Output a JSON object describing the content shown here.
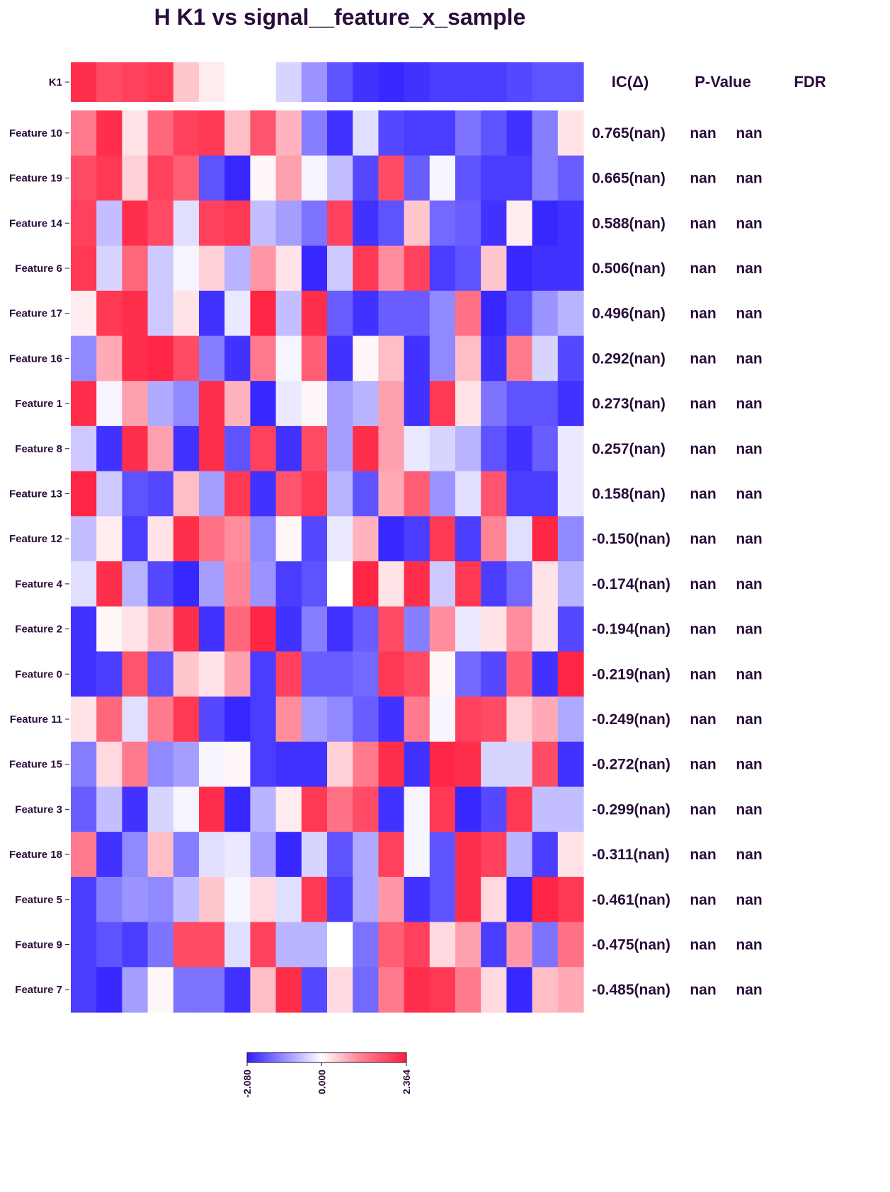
{
  "chart_data": {
    "type": "heatmap",
    "title": "H K1 vs signal__feature_x_sample",
    "target": {
      "label": "K1",
      "values": [
        2.2,
        1.9,
        2.0,
        2.1,
        0.6,
        0.2,
        0.0,
        0.0,
        -0.4,
        -1.0,
        -1.6,
        -1.9,
        -2.0,
        -1.9,
        -1.8,
        -1.8,
        -1.8,
        -1.7,
        -1.6,
        -1.6
      ]
    },
    "columns_header": [
      "IC(Δ)",
      "P-Value",
      "FDR"
    ],
    "features": [
      {
        "label": "Feature 10",
        "ic": "0.765(nan)",
        "p": "nan",
        "fdr": "nan",
        "values": [
          1.4,
          2.2,
          0.3,
          1.6,
          2.0,
          2.1,
          0.7,
          1.8,
          0.8,
          -1.2,
          -1.9,
          -0.3,
          -1.7,
          -1.8,
          -1.8,
          -1.3,
          -1.6,
          -1.9,
          -1.2,
          0.3
        ]
      },
      {
        "label": "Feature 19",
        "ic": "0.665(nan)",
        "p": "nan",
        "fdr": "nan",
        "values": [
          1.9,
          2.1,
          0.5,
          2.0,
          1.7,
          -1.6,
          -2.0,
          0.1,
          1.0,
          -0.1,
          -0.6,
          -1.7,
          1.9,
          -1.5,
          -0.1,
          -1.6,
          -1.8,
          -1.8,
          -1.2,
          -1.5
        ]
      },
      {
        "label": "Feature 14",
        "ic": "0.588(nan)",
        "p": "nan",
        "fdr": "nan",
        "values": [
          2.0,
          -0.6,
          2.2,
          1.9,
          -0.3,
          2.0,
          2.1,
          -0.6,
          -0.9,
          -1.3,
          2.0,
          -1.9,
          -1.6,
          0.6,
          -1.4,
          -1.5,
          -1.9,
          0.2,
          -2.0,
          -1.9
        ]
      },
      {
        "label": "Feature 6",
        "ic": "0.506(nan)",
        "p": "nan",
        "fdr": "nan",
        "values": [
          2.1,
          -0.4,
          1.6,
          -0.5,
          -0.1,
          0.5,
          -0.7,
          1.1,
          0.3,
          -2.0,
          -0.5,
          2.1,
          1.2,
          2.0,
          -1.8,
          -1.6,
          0.6,
          -2.0,
          -1.9,
          -1.9
        ]
      },
      {
        "label": "Feature 17",
        "ic": "0.496(nan)",
        "p": "nan",
        "fdr": "nan",
        "values": [
          0.2,
          2.1,
          2.2,
          -0.5,
          0.3,
          -1.9,
          -0.2,
          2.3,
          -0.6,
          2.2,
          -1.5,
          -1.9,
          -1.5,
          -1.5,
          -1.1,
          1.5,
          -2.0,
          -1.6,
          -1.0,
          -0.7
        ]
      },
      {
        "label": "Feature 16",
        "ic": "0.292(nan)",
        "p": "nan",
        "fdr": "nan",
        "values": [
          -1.1,
          0.9,
          2.2,
          2.3,
          1.9,
          -1.2,
          -1.9,
          1.4,
          -0.1,
          1.7,
          -1.9,
          0.1,
          0.7,
          -1.9,
          -1.1,
          0.7,
          -1.9,
          1.4,
          -0.4,
          -1.7
        ]
      },
      {
        "label": "Feature 1",
        "ic": "0.273(nan)",
        "p": "nan",
        "fdr": "nan",
        "values": [
          2.2,
          -0.1,
          1.0,
          -0.8,
          -1.1,
          2.2,
          0.8,
          -2.0,
          -0.2,
          0.1,
          -0.9,
          -0.7,
          1.0,
          -1.9,
          2.1,
          0.3,
          -1.3,
          -1.6,
          -1.6,
          -1.9
        ]
      },
      {
        "label": "Feature 8",
        "ic": "0.257(nan)",
        "p": "nan",
        "fdr": "nan",
        "values": [
          -0.5,
          -1.9,
          2.2,
          1.0,
          -1.9,
          2.2,
          -1.6,
          2.0,
          -1.9,
          1.9,
          -0.9,
          2.2,
          1.0,
          -0.2,
          -0.4,
          -0.7,
          -1.6,
          -1.9,
          -1.5,
          -0.2
        ]
      },
      {
        "label": "Feature 13",
        "ic": "0.158(nan)",
        "p": "nan",
        "fdr": "nan",
        "values": [
          2.3,
          -0.5,
          -1.6,
          -1.7,
          0.7,
          -0.9,
          2.1,
          -1.9,
          1.8,
          2.1,
          -0.7,
          -1.6,
          0.9,
          1.7,
          -1.0,
          -0.3,
          1.8,
          -1.8,
          -1.8,
          -0.2
        ]
      },
      {
        "label": "Feature 12",
        "ic": "-0.150(nan)",
        "p": "nan",
        "fdr": "nan",
        "values": [
          -0.6,
          0.2,
          -1.8,
          0.3,
          2.2,
          1.5,
          1.2,
          -1.1,
          0.1,
          -1.7,
          -0.2,
          0.8,
          -2.0,
          -1.8,
          2.1,
          -1.8,
          1.3,
          -0.3,
          2.3,
          -1.1
        ]
      },
      {
        "label": "Feature 4",
        "ic": "-0.174(nan)",
        "p": "nan",
        "fdr": "nan",
        "values": [
          -0.3,
          2.2,
          -0.7,
          -1.7,
          -2.0,
          -0.9,
          1.3,
          -1.0,
          -1.8,
          -1.6,
          0.0,
          2.3,
          0.3,
          2.2,
          -0.5,
          2.1,
          -1.8,
          -1.4,
          0.3,
          -0.7
        ]
      },
      {
        "label": "Feature 2",
        "ic": "-0.194(nan)",
        "p": "nan",
        "fdr": "nan",
        "values": [
          -1.9,
          0.1,
          0.3,
          0.8,
          2.2,
          -1.9,
          1.6,
          2.3,
          -1.9,
          -1.2,
          -1.9,
          -1.5,
          1.9,
          -1.2,
          1.2,
          -0.2,
          0.3,
          1.2,
          0.3,
          -1.7
        ]
      },
      {
        "label": "Feature 0",
        "ic": "-0.219(nan)",
        "p": "nan",
        "fdr": "nan",
        "values": [
          -1.9,
          -1.8,
          1.8,
          -1.6,
          0.6,
          0.3,
          1.0,
          -1.8,
          2.0,
          -1.5,
          -1.5,
          -1.4,
          2.1,
          1.9,
          0.1,
          -1.4,
          -1.7,
          1.7,
          -1.9,
          2.3
        ]
      },
      {
        "label": "Feature 11",
        "ic": "-0.249(nan)",
        "p": "nan",
        "fdr": "nan",
        "values": [
          0.3,
          1.6,
          -0.3,
          1.4,
          2.1,
          -1.7,
          -2.0,
          -1.8,
          1.2,
          -0.9,
          -1.1,
          -1.5,
          -1.9,
          1.4,
          -0.1,
          2.0,
          1.9,
          0.5,
          0.9,
          -0.8
        ]
      },
      {
        "label": "Feature 15",
        "ic": "-0.272(nan)",
        "p": "nan",
        "fdr": "nan",
        "values": [
          -1.2,
          0.4,
          1.4,
          -1.1,
          -0.9,
          -0.1,
          0.1,
          -1.8,
          -1.9,
          -1.9,
          0.5,
          1.4,
          2.2,
          -1.9,
          2.3,
          2.2,
          -0.4,
          -0.4,
          1.9,
          -1.9
        ]
      },
      {
        "label": "Feature 3",
        "ic": "-0.299(nan)",
        "p": "nan",
        "fdr": "nan",
        "values": [
          -1.5,
          -0.6,
          -1.9,
          -0.4,
          -0.1,
          2.2,
          -2.0,
          -0.7,
          0.2,
          2.1,
          1.5,
          1.9,
          -1.9,
          -0.1,
          2.1,
          -2.0,
          -1.7,
          2.1,
          -0.6,
          -0.6
        ]
      },
      {
        "label": "Feature 18",
        "ic": "-0.311(nan)",
        "p": "nan",
        "fdr": "nan",
        "values": [
          1.4,
          -1.9,
          -1.1,
          0.7,
          -1.2,
          -0.3,
          -0.2,
          -0.9,
          -2.0,
          -0.4,
          -1.6,
          -0.8,
          2.0,
          -0.1,
          -1.6,
          2.2,
          2.0,
          -0.7,
          -1.8,
          0.3
        ]
      },
      {
        "label": "Feature 5",
        "ic": "-0.461(nan)",
        "p": "nan",
        "fdr": "nan",
        "values": [
          -1.8,
          -1.2,
          -1.0,
          -1.1,
          -0.6,
          0.6,
          -0.1,
          0.4,
          -0.3,
          2.1,
          -1.8,
          -0.8,
          1.1,
          -1.9,
          -1.6,
          2.2,
          0.4,
          -2.0,
          2.3,
          2.1
        ]
      },
      {
        "label": "Feature 9",
        "ic": "-0.475(nan)",
        "p": "nan",
        "fdr": "nan",
        "values": [
          -1.8,
          -1.6,
          -1.8,
          -1.3,
          1.9,
          1.9,
          -0.3,
          2.0,
          -0.7,
          -0.7,
          0.0,
          -1.3,
          1.7,
          2.0,
          0.4,
          1.0,
          -1.8,
          1.1,
          -1.3,
          1.5
        ]
      },
      {
        "label": "Feature 7",
        "ic": "-0.485(nan)",
        "p": "nan",
        "fdr": "nan",
        "values": [
          -1.8,
          -2.0,
          -0.9,
          0.1,
          -1.3,
          -1.3,
          -1.9,
          0.7,
          2.2,
          -1.7,
          0.4,
          -1.4,
          1.4,
          2.2,
          2.1,
          1.4,
          0.4,
          -2.0,
          0.7,
          0.9
        ]
      }
    ],
    "colorbar": {
      "min": -2.08,
      "mid": 0.0,
      "max": 2.364,
      "tick_labels": [
        "-2.080",
        "0.000",
        "2.364"
      ],
      "colors": {
        "low": "#2f1fff",
        "mid": "#ffffff",
        "high": "#ff1f3f"
      }
    }
  }
}
